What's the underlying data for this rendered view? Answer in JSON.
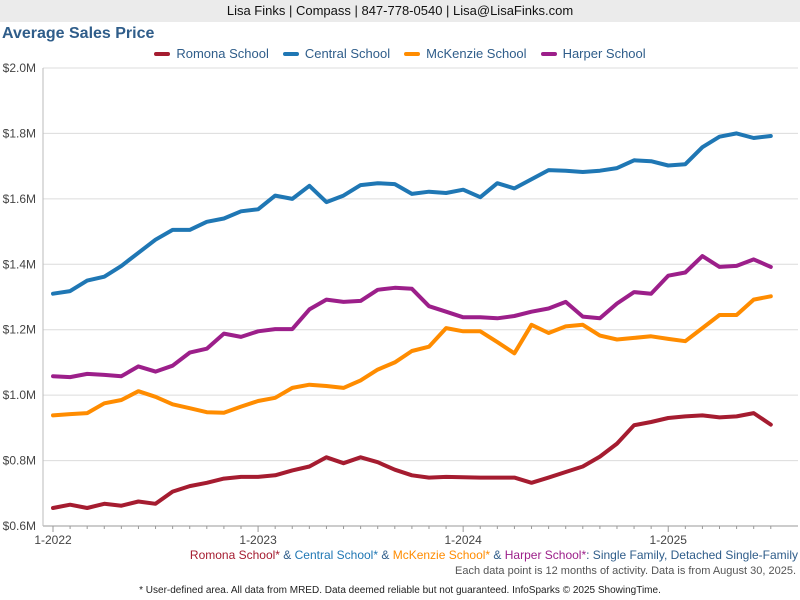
{
  "header": {
    "agent_line": "Lisa Finks | Compass | 847-778-0540 | Lisa@LisaFinks.com"
  },
  "chart_data": {
    "type": "line",
    "title": "Average Sales Price",
    "x_tick_labels": [
      "1-2022",
      "1-2023",
      "1-2024",
      "1-2025"
    ],
    "y_tick_labels": [
      "$0.6M",
      "$0.8M",
      "$1.0M",
      "$1.2M",
      "$1.4M",
      "$1.6M",
      "$1.8M",
      "$2.0M"
    ],
    "ylim": [
      0.6,
      2.0
    ],
    "y_unit": "millions USD",
    "x_months": [
      "2022-01",
      "2022-02",
      "2022-03",
      "2022-04",
      "2022-05",
      "2022-06",
      "2022-07",
      "2022-08",
      "2022-09",
      "2022-10",
      "2022-11",
      "2022-12",
      "2023-01",
      "2023-02",
      "2023-03",
      "2023-04",
      "2023-05",
      "2023-06",
      "2023-07",
      "2023-08",
      "2023-09",
      "2023-10",
      "2023-11",
      "2023-12",
      "2024-01",
      "2024-02",
      "2024-03",
      "2024-04",
      "2024-05",
      "2024-06",
      "2024-07",
      "2024-08",
      "2024-09",
      "2024-10",
      "2024-11",
      "2024-12",
      "2025-01",
      "2025-02",
      "2025-03",
      "2025-04",
      "2025-05",
      "2025-06",
      "2025-07"
    ],
    "grid": true,
    "legend_position": "top-center",
    "series": [
      {
        "name": "Romona School",
        "color": "#a51c30",
        "values": [
          0.655,
          0.665,
          0.655,
          0.668,
          0.662,
          0.675,
          0.668,
          0.705,
          0.722,
          0.732,
          0.745,
          0.75,
          0.75,
          0.755,
          0.77,
          0.782,
          0.81,
          0.792,
          0.81,
          0.795,
          0.772,
          0.755,
          0.748,
          0.75,
          0.749,
          0.748,
          0.748,
          0.748,
          0.732,
          0.748,
          0.765,
          0.782,
          0.812,
          0.852,
          0.908,
          0.918,
          0.93,
          0.935,
          0.938,
          0.932,
          0.935,
          0.945,
          0.91
        ]
      },
      {
        "name": "Central School",
        "color": "#1f77b4",
        "values": [
          1.31,
          1.318,
          1.35,
          1.362,
          1.395,
          1.435,
          1.475,
          1.505,
          1.505,
          1.53,
          1.54,
          1.562,
          1.568,
          1.61,
          1.6,
          1.64,
          1.59,
          1.61,
          1.642,
          1.648,
          1.645,
          1.615,
          1.622,
          1.618,
          1.628,
          1.605,
          1.648,
          1.632,
          1.66,
          1.688,
          1.686,
          1.682,
          1.686,
          1.694,
          1.718,
          1.715,
          1.702,
          1.706,
          1.758,
          1.79,
          1.8,
          1.786,
          1.792
        ]
      },
      {
        "name": "McKenzie School",
        "color": "#ff8c00",
        "values": [
          0.938,
          0.942,
          0.945,
          0.975,
          0.985,
          1.012,
          0.995,
          0.972,
          0.96,
          0.948,
          0.946,
          0.965,
          0.982,
          0.992,
          1.022,
          1.032,
          1.028,
          1.022,
          1.045,
          1.078,
          1.1,
          1.135,
          1.148,
          1.205,
          1.195,
          1.195,
          1.162,
          1.128,
          1.215,
          1.19,
          1.21,
          1.215,
          1.182,
          1.17,
          1.175,
          1.18,
          1.172,
          1.165,
          1.205,
          1.245,
          1.245,
          1.292,
          1.302
        ]
      },
      {
        "name": "Harper School",
        "color": "#9c1f8a",
        "values": [
          1.058,
          1.055,
          1.065,
          1.062,
          1.058,
          1.088,
          1.072,
          1.09,
          1.13,
          1.142,
          1.188,
          1.178,
          1.195,
          1.202,
          1.202,
          1.262,
          1.292,
          1.285,
          1.288,
          1.322,
          1.328,
          1.325,
          1.272,
          1.255,
          1.238,
          1.238,
          1.235,
          1.242,
          1.255,
          1.265,
          1.285,
          1.24,
          1.235,
          1.28,
          1.315,
          1.31,
          1.365,
          1.375,
          1.425,
          1.392,
          1.395,
          1.415,
          1.392
        ]
      }
    ]
  },
  "caption": {
    "parts": [
      {
        "text": "Romona School*",
        "color": "#a51c30"
      },
      {
        "text": " & ",
        "color": "#2f5d8a"
      },
      {
        "text": "Central School*",
        "color": "#1f77b4"
      },
      {
        "text": " & ",
        "color": "#2f5d8a"
      },
      {
        "text": "McKenzie School*",
        "color": "#ff8c00"
      },
      {
        "text": " & ",
        "color": "#2f5d8a"
      },
      {
        "text": "Harper School*",
        "color": "#9c1f8a"
      },
      {
        "text": ": Single Family, Detached Single-Family",
        "color": "#2f5d8a"
      }
    ]
  },
  "note": "Each data point is 12 months of activity. Data is from August 30, 2025.",
  "footer": "* User-defined area. All data from MRED. Data deemed reliable but not guaranteed. InfoSparks © 2025 ShowingTime."
}
